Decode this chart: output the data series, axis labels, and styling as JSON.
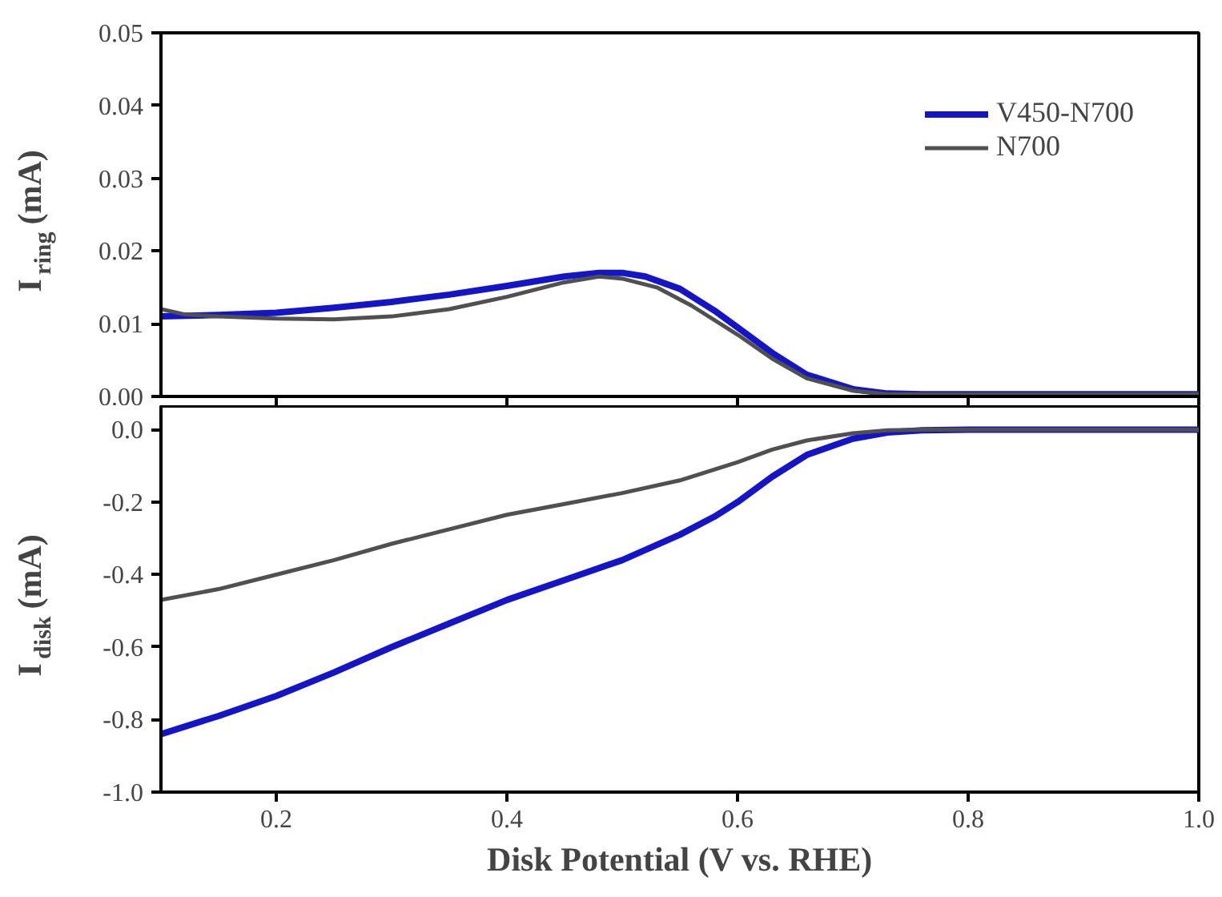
{
  "chart_data": [
    {
      "type": "line",
      "ylabel": "I$_{ring}$ (mA)",
      "xlim": [
        0.1,
        1.0
      ],
      "xticks": [
        0.2,
        0.4,
        0.6,
        0.8,
        1.0
      ],
      "ylim": [
        0,
        0.05
      ],
      "yticks": [
        {
          "value": 0,
          "label": "0.00"
        },
        {
          "value": 0.01,
          "label": "0.01"
        },
        {
          "value": 0.02,
          "label": "0.02"
        },
        {
          "value": 0.03,
          "label": "0.03"
        },
        {
          "value": 0.04,
          "label": "0.04"
        },
        {
          "value": 0.05,
          "label": "0.05"
        }
      ],
      "tick_labels": "y",
      "grid": false,
      "legend": "top right",
      "series": [
        {
          "name": "V450-N700",
          "color": "#1414c8",
          "x": [
            0.1,
            0.15,
            0.2,
            0.25,
            0.3,
            0.35,
            0.4,
            0.45,
            0.48,
            0.5,
            0.52,
            0.55,
            0.58,
            0.6,
            0.63,
            0.66,
            0.7,
            0.73,
            0.76,
            1.0
          ],
          "values": [
            0.011,
            0.0112,
            0.0115,
            0.0122,
            0.013,
            0.014,
            0.0152,
            0.0165,
            0.017,
            0.017,
            0.0165,
            0.0148,
            0.0118,
            0.0095,
            0.006,
            0.003,
            0.001,
            0.0004,
            0.0003,
            0.0003
          ]
        },
        {
          "name": "N700",
          "color": "#505050",
          "x": [
            0.1,
            0.12,
            0.15,
            0.2,
            0.25,
            0.3,
            0.35,
            0.4,
            0.45,
            0.48,
            0.5,
            0.53,
            0.56,
            0.6,
            0.63,
            0.66,
            0.7,
            0.73,
            1.0
          ],
          "values": [
            0.012,
            0.0113,
            0.011,
            0.0107,
            0.0106,
            0.011,
            0.012,
            0.0137,
            0.0157,
            0.0165,
            0.0162,
            0.015,
            0.0125,
            0.0085,
            0.0052,
            0.0025,
            0.0008,
            0.0003,
            0.0003
          ]
        }
      ]
    },
    {
      "type": "line",
      "xlabel": "Disk Potential (V vs. RHE)",
      "ylabel": "I$_{disk}$ (mA)",
      "xlim": [
        0.1,
        1.0
      ],
      "xticks": [
        0.2,
        0.4,
        0.6,
        0.8,
        {
          "value": 1.0,
          "label": "1.0"
        }
      ],
      "ylim": [
        -1.0,
        0.065
      ],
      "yticks": [
        {
          "value": 0,
          "label": "0.0"
        },
        {
          "value": -0.2,
          "label": "-0.2"
        },
        {
          "value": -0.4,
          "label": "-0.4"
        },
        {
          "value": -0.6,
          "label": "-0.6"
        },
        {
          "value": -0.8,
          "label": "-0.8"
        },
        {
          "value": -1.0,
          "label": "-1.0"
        }
      ],
      "grid": false,
      "series": [
        {
          "color": "#1414c8",
          "x": [
            0.1,
            0.15,
            0.2,
            0.25,
            0.3,
            0.35,
            0.4,
            0.45,
            0.5,
            0.55,
            0.58,
            0.6,
            0.63,
            0.66,
            0.7,
            0.73,
            0.76,
            0.8,
            1.0
          ],
          "values": [
            -0.84,
            -0.79,
            -0.735,
            -0.67,
            -0.6,
            -0.535,
            -0.47,
            -0.415,
            -0.36,
            -0.29,
            -0.24,
            -0.2,
            -0.13,
            -0.07,
            -0.025,
            -0.008,
            -0.002,
            0,
            0
          ]
        },
        {
          "color": "#505050",
          "x": [
            0.1,
            0.15,
            0.2,
            0.25,
            0.3,
            0.35,
            0.4,
            0.45,
            0.5,
            0.55,
            0.6,
            0.63,
            0.66,
            0.7,
            0.73,
            0.76,
            1.0
          ],
          "values": [
            -0.47,
            -0.44,
            -0.4,
            -0.36,
            -0.315,
            -0.275,
            -0.235,
            -0.205,
            -0.175,
            -0.14,
            -0.09,
            -0.055,
            -0.03,
            -0.01,
            -0.002,
            0,
            0
          ]
        }
      ]
    }
  ]
}
